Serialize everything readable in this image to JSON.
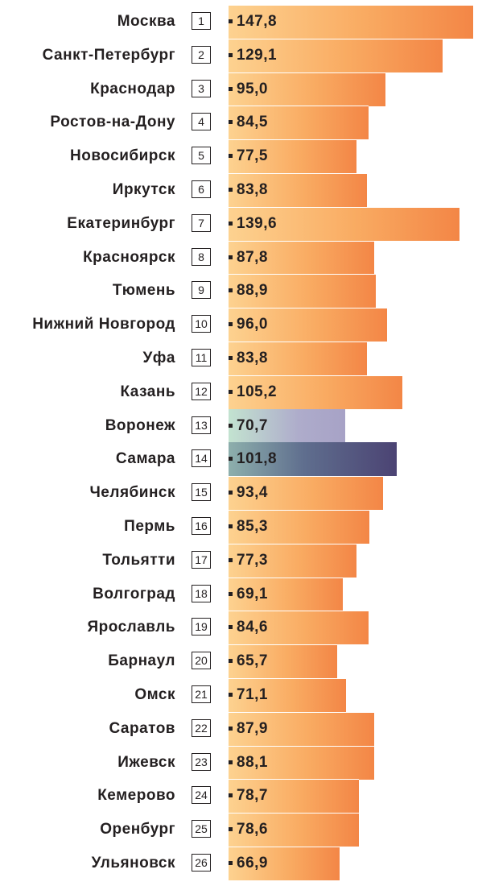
{
  "chart_data": {
    "type": "bar",
    "orientation": "horizontal",
    "categories": [
      "Москва",
      "Санкт-Петербург",
      "Краснодар",
      "Ростов-на-Дону",
      "Новосибирск",
      "Иркутск",
      "Екатеринбург",
      "Красноярск",
      "Тюмень",
      "Нижний Новгород",
      "Уфа",
      "Казань",
      "Воронеж",
      "Самара",
      "Челябинск",
      "Пермь",
      "Тольятти",
      "Волгоград",
      "Ярославль",
      "Барнаул",
      "Омск",
      "Саратов",
      "Ижевск",
      "Кемерово",
      "Оренбург",
      "Ульяновск"
    ],
    "ranks": [
      "1",
      "2",
      "3",
      "4",
      "5",
      "6",
      "7",
      "8",
      "9",
      "10",
      "11",
      "12",
      "13",
      "14",
      "15",
      "16",
      "17",
      "18",
      "19",
      "20",
      "21",
      "22",
      "23",
      "24",
      "25",
      "26"
    ],
    "values": [
      147.8,
      129.1,
      95.0,
      84.5,
      77.5,
      83.8,
      139.6,
      87.8,
      88.9,
      96.0,
      83.8,
      105.2,
      70.7,
      101.8,
      93.4,
      85.3,
      77.3,
      69.1,
      84.6,
      65.7,
      71.1,
      87.9,
      88.1,
      78.7,
      78.6,
      66.9
    ],
    "value_labels": [
      "147,8",
      "129,1",
      "95,0",
      "84,5",
      "77,5",
      "83,8",
      "139,6",
      "87,8",
      "88,9",
      "96,0",
      "83,8",
      "105,2",
      "70,7",
      "101,8",
      "93,4",
      "85,3",
      "77,3",
      "69,1",
      "84,6",
      "65,7",
      "71,1",
      "87,9",
      "88,1",
      "78,7",
      "78,6",
      "66,9"
    ],
    "highlight": {
      "Воронеж": "voronezh",
      "Самара": "samara"
    },
    "colors": {
      "bar_light": "#fdd290",
      "bar_dark": "#f38646",
      "voronezh": "#a7a2c6",
      "samara": "#4b4373",
      "text": "#231f20"
    },
    "xlim": [
      0,
      147.8
    ],
    "title": "",
    "xlabel": "",
    "ylabel": ""
  }
}
